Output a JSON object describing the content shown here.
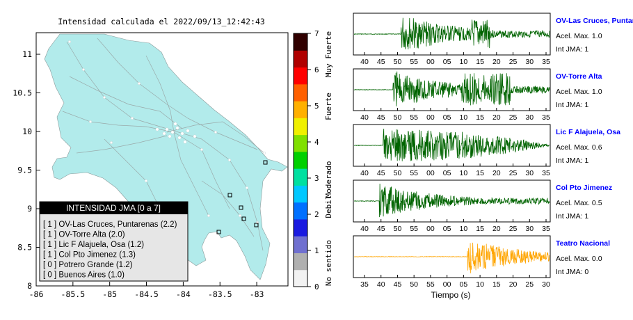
{
  "map": {
    "title": "Intensidad calculada el 2022/09/13_12:42:43",
    "x_ticks": [
      "-86",
      "-85.5",
      "-85",
      "-84.5",
      "-84",
      "-83.5",
      "-83"
    ],
    "y_ticks": [
      "11",
      "10.5",
      "10",
      "9.5",
      "9",
      "8.5",
      "8"
    ],
    "legend_title": "INTENSIDAD JMA [0 a 7]",
    "legend_items": [
      "[ 1 ]  OV-Las Cruces, Puntarenas (2.2)",
      "[ 1 ]  OV-Torre Alta (2.0)",
      "[ 1 ]  Lic F Alajuela, Osa (1.2)",
      "[ 1 ]  Col Pto Jimenez (1.3)",
      "[ 0 ]  Potrero Grande (1.2)",
      "[ 0 ]  Buenos Aires (1.0)"
    ],
    "colors": {
      "land": "#b2ebeb",
      "legend_header": "#000000",
      "legend_bg": "#e6e6e6"
    }
  },
  "colorbar": {
    "ticks": [
      "7",
      "6",
      "5",
      "4",
      "3",
      "2",
      "1",
      "0"
    ],
    "labels": [
      "Muy Fuerte",
      "Fuerte",
      "Moderado",
      "Debil",
      "No sentido"
    ],
    "colors": [
      "#f2f2f2",
      "#b0b0b0",
      "#7070d0",
      "#1a1ae0",
      "#0070ff",
      "#00c8ff",
      "#00e0a0",
      "#00d000",
      "#80e000",
      "#f0f000",
      "#ffb000",
      "#ff6000",
      "#ff0000",
      "#b00000",
      "#300000"
    ]
  },
  "chart_data": [
    {
      "type": "line",
      "station": "OV-Las Cruces, Puntar",
      "acel_label": "Acel. Max. 1.0",
      "int_label": "Int JMA: 1",
      "color": "#006400",
      "x_ticks": [
        "40",
        "45",
        "50",
        "55",
        "00",
        "05",
        "10",
        "15",
        "20",
        "25",
        "30",
        "35"
      ],
      "onset_fraction": 0.24,
      "amplitude": 1.0
    },
    {
      "type": "line",
      "station": "OV-Torre Alta",
      "acel_label": "Acel. Max. 1.0",
      "int_label": "Int JMA: 1",
      "color": "#006400",
      "x_ticks": [
        "40",
        "45",
        "50",
        "55",
        "00",
        "05",
        "10",
        "15",
        "20",
        "25",
        "30",
        "35"
      ],
      "onset_fraction": 0.2,
      "amplitude": 1.0
    },
    {
      "type": "line",
      "station": "Lic F Alajuela, Osa",
      "acel_label": "Acel. Max. 0.6",
      "int_label": "Int JMA: 1",
      "color": "#006400",
      "x_ticks": [
        "40",
        "45",
        "50",
        "55",
        "00",
        "05",
        "10",
        "15",
        "20",
        "25",
        "30",
        "35"
      ],
      "onset_fraction": 0.15,
      "amplitude": 0.9
    },
    {
      "type": "line",
      "station": "Col Pto Jimenez",
      "acel_label": "Acel. Max. 0.5",
      "int_label": "Int JMA: 1",
      "color": "#006400",
      "x_ticks": [
        "40",
        "45",
        "50",
        "55",
        "00",
        "05",
        "10",
        "15",
        "20",
        "25",
        "30",
        "35"
      ],
      "onset_fraction": 0.13,
      "amplitude": 0.9
    },
    {
      "type": "line",
      "station": "Teatro Nacional",
      "acel_label": "Acel. Max. 0.0",
      "int_label": "Int JMA: 0",
      "color": "#ffa500",
      "x_ticks": [
        "35",
        "40",
        "45",
        "50",
        "55",
        "00",
        "05",
        "10",
        "15",
        "20",
        "25",
        "30"
      ],
      "onset_fraction": 0.58,
      "amplitude": 0.9,
      "xlabel": "Tiempo (s)"
    }
  ]
}
